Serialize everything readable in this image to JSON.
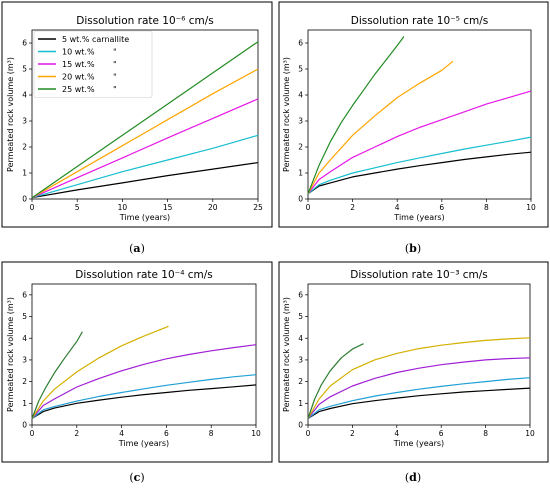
{
  "legend": {
    "entries": [
      {
        "label": "5 wt.% carnallite",
        "mark": ""
      },
      {
        "label": "10 wt.%",
        "mark": "\""
      },
      {
        "label": "15 wt.%",
        "mark": "\""
      },
      {
        "label": "20 wt.%",
        "mark": "\""
      },
      {
        "label": "25 wt.%",
        "mark": "\""
      }
    ]
  },
  "chart_data": [
    {
      "type": "line",
      "panel_label": "a",
      "title": "Dissolution rate 10⁻⁶ cm/s",
      "xlabel": "Time (years)",
      "ylabel": "Permeated rock volume (m³)",
      "xlim": [
        0,
        25
      ],
      "ylim": [
        0,
        6.5
      ],
      "xticks": [
        0,
        5,
        10,
        15,
        20,
        25
      ],
      "yticks": [
        0,
        1,
        2,
        3,
        4,
        5,
        6
      ],
      "legend_position": "upper-left",
      "grid": false,
      "series": [
        {
          "name": "5 wt.% carnallite",
          "color": "#000000",
          "x": [
            0,
            5,
            10,
            15,
            20,
            25
          ],
          "y": [
            0.05,
            0.35,
            0.62,
            0.9,
            1.15,
            1.4
          ]
        },
        {
          "name": "10 wt.%",
          "color": "#17becf",
          "x": [
            0,
            5,
            10,
            15,
            20,
            25
          ],
          "y": [
            0.05,
            0.55,
            1.05,
            1.5,
            1.95,
            2.45
          ]
        },
        {
          "name": "15 wt.%",
          "color": "#e617e6",
          "x": [
            0,
            5,
            10,
            15,
            20,
            25
          ],
          "y": [
            0.05,
            0.82,
            1.58,
            2.35,
            3.1,
            3.85
          ]
        },
        {
          "name": "20 wt.%",
          "color": "#ffa500",
          "x": [
            0,
            5,
            10,
            15,
            20,
            25
          ],
          "y": [
            0.05,
            1.05,
            2.05,
            3.05,
            4.05,
            5.0
          ]
        },
        {
          "name": "25 wt.%",
          "color": "#228b22",
          "x": [
            0,
            5,
            10,
            15,
            20,
            25
          ],
          "y": [
            0.05,
            1.25,
            2.45,
            3.65,
            4.85,
            6.05
          ]
        }
      ]
    },
    {
      "type": "line",
      "panel_label": "b",
      "title": "Dissolution rate 10⁻⁵ cm/s",
      "xlabel": "Time (years)",
      "ylabel": "Permeated rock volume (m³)",
      "xlim": [
        0,
        10
      ],
      "ylim": [
        0,
        6.5
      ],
      "xticks": [
        0,
        2,
        4,
        6,
        8,
        10
      ],
      "yticks": [
        0,
        1,
        2,
        3,
        4,
        5,
        6
      ],
      "grid": false,
      "series": [
        {
          "name": "5 wt.% carnallite",
          "color": "#000000",
          "x": [
            0,
            0.5,
            1,
            2,
            3,
            4,
            5,
            6,
            7,
            8,
            9,
            10
          ],
          "y": [
            0.2,
            0.5,
            0.62,
            0.85,
            1.0,
            1.15,
            1.28,
            1.4,
            1.52,
            1.62,
            1.72,
            1.8
          ]
        },
        {
          "name": "10 wt.%",
          "color": "#17becf",
          "x": [
            0,
            0.5,
            1,
            2,
            3,
            4,
            5,
            6,
            7,
            8,
            9,
            10
          ],
          "y": [
            0.2,
            0.55,
            0.72,
            1.0,
            1.2,
            1.4,
            1.58,
            1.75,
            1.92,
            2.07,
            2.22,
            2.38
          ]
        },
        {
          "name": "15 wt.%",
          "color": "#e617e6",
          "x": [
            0,
            0.5,
            1,
            2,
            3,
            4,
            5,
            6,
            7,
            8,
            9,
            10
          ],
          "y": [
            0.2,
            0.75,
            1.05,
            1.6,
            2.0,
            2.4,
            2.75,
            3.05,
            3.35,
            3.65,
            3.9,
            4.15
          ]
        },
        {
          "name": "20 wt.%",
          "color": "#ffa500",
          "x": [
            0,
            0.5,
            1,
            2,
            3,
            4,
            5,
            6,
            6.5
          ],
          "y": [
            0.2,
            1.0,
            1.5,
            2.45,
            3.2,
            3.9,
            4.45,
            4.95,
            5.3
          ]
        },
        {
          "name": "25 wt.%",
          "color": "#228b22",
          "x": [
            0,
            0.5,
            1,
            1.5,
            2,
            2.5,
            3,
            3.5,
            4,
            4.3
          ],
          "y": [
            0.2,
            1.3,
            2.2,
            2.95,
            3.6,
            4.2,
            4.8,
            5.35,
            5.9,
            6.25
          ]
        }
      ]
    },
    {
      "type": "line",
      "panel_label": "c",
      "title": "Dissolution rate 10⁻⁴ cm/s",
      "xlabel": "Time (years)",
      "ylabel": "Permeated rock volume (m³)",
      "xlim": [
        0,
        10
      ],
      "ylim": [
        0,
        6.5
      ],
      "xticks": [
        0,
        2,
        4,
        6,
        8,
        10
      ],
      "yticks": [
        0,
        1,
        2,
        3,
        4,
        5,
        6
      ],
      "grid": false,
      "series": [
        {
          "name": "5 wt.% carnallite",
          "color": "#000000",
          "x": [
            0,
            0.5,
            1,
            2,
            3,
            4,
            5,
            6,
            7,
            8,
            9,
            10
          ],
          "y": [
            0.3,
            0.62,
            0.78,
            1.0,
            1.15,
            1.28,
            1.4,
            1.5,
            1.6,
            1.68,
            1.76,
            1.85
          ]
        },
        {
          "name": "10 wt.%",
          "color": "#1f9fd6",
          "x": [
            0,
            0.5,
            1,
            2,
            3,
            4,
            5,
            6,
            7,
            8,
            9,
            10
          ],
          "y": [
            0.3,
            0.7,
            0.85,
            1.1,
            1.32,
            1.5,
            1.67,
            1.83,
            1.97,
            2.1,
            2.22,
            2.32
          ]
        },
        {
          "name": "15 wt.%",
          "color": "#a01fd6",
          "x": [
            0,
            0.5,
            1,
            2,
            3,
            4,
            5,
            6,
            7,
            8,
            9,
            10
          ],
          "y": [
            0.3,
            0.9,
            1.2,
            1.75,
            2.15,
            2.5,
            2.8,
            3.05,
            3.25,
            3.42,
            3.57,
            3.7
          ]
        },
        {
          "name": "20 wt.%",
          "color": "#d4b000",
          "x": [
            0,
            0.5,
            1,
            2,
            3,
            4,
            5,
            6.1
          ],
          "y": [
            0.3,
            1.1,
            1.65,
            2.45,
            3.1,
            3.65,
            4.1,
            4.55
          ]
        },
        {
          "name": "25 wt.%",
          "color": "#2e7d32",
          "x": [
            0,
            0.3,
            0.6,
            1,
            1.5,
            2,
            2.25
          ],
          "y": [
            0.3,
            1.1,
            1.7,
            2.4,
            3.15,
            3.85,
            4.3
          ]
        }
      ]
    },
    {
      "type": "line",
      "panel_label": "d",
      "title": "Dissolution rate 10⁻³ cm/s",
      "xlabel": "Time (years)",
      "ylabel": "Permeated rock volume (m³)",
      "xlim": [
        0,
        10
      ],
      "ylim": [
        0,
        6.5
      ],
      "xticks": [
        0,
        2,
        4,
        6,
        8,
        10
      ],
      "yticks": [
        0,
        1,
        2,
        3,
        4,
        5,
        6
      ],
      "grid": false,
      "series": [
        {
          "name": "5 wt.% carnallite",
          "color": "#000000",
          "x": [
            0,
            0.5,
            1,
            2,
            3,
            4,
            5,
            6,
            7,
            8,
            9,
            10
          ],
          "y": [
            0.3,
            0.62,
            0.76,
            0.98,
            1.12,
            1.24,
            1.35,
            1.44,
            1.52,
            1.58,
            1.64,
            1.7
          ]
        },
        {
          "name": "10 wt.%",
          "color": "#1f9fd6",
          "x": [
            0,
            0.5,
            1,
            2,
            3,
            4,
            5,
            6,
            7,
            8,
            9,
            10
          ],
          "y": [
            0.3,
            0.7,
            0.86,
            1.12,
            1.33,
            1.5,
            1.65,
            1.78,
            1.9,
            2.0,
            2.1,
            2.18
          ]
        },
        {
          "name": "15 wt.%",
          "color": "#a01fd6",
          "x": [
            0,
            0.5,
            1,
            2,
            3,
            4,
            5,
            6,
            7,
            8,
            9,
            10
          ],
          "y": [
            0.3,
            0.95,
            1.3,
            1.8,
            2.15,
            2.42,
            2.62,
            2.78,
            2.9,
            3.0,
            3.06,
            3.1
          ]
        },
        {
          "name": "20 wt.%",
          "color": "#d4b000",
          "x": [
            0,
            0.5,
            1,
            2,
            3,
            4,
            5,
            6,
            7,
            8,
            9,
            10
          ],
          "y": [
            0.3,
            1.2,
            1.8,
            2.55,
            3.0,
            3.3,
            3.52,
            3.68,
            3.8,
            3.9,
            3.97,
            4.02
          ]
        },
        {
          "name": "25 wt.%",
          "color": "#2e7d32",
          "x": [
            0,
            0.3,
            0.6,
            1,
            1.5,
            2,
            2.5
          ],
          "y": [
            0.3,
            1.2,
            1.85,
            2.5,
            3.1,
            3.5,
            3.75
          ]
        }
      ]
    }
  ]
}
